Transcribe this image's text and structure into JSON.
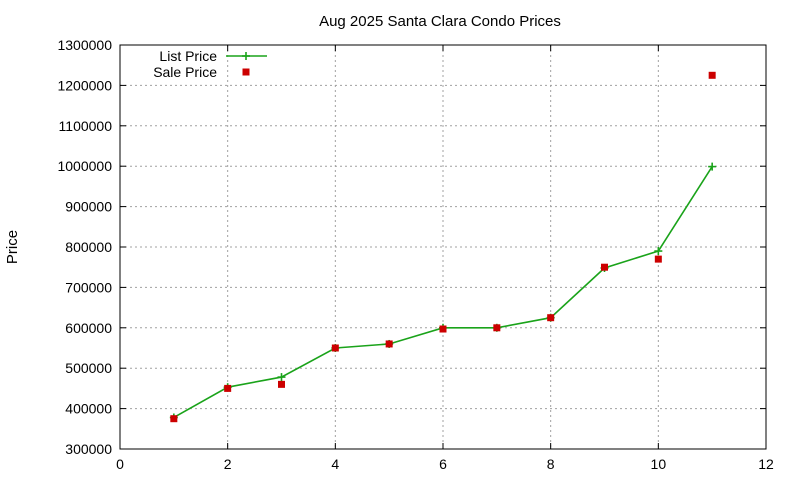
{
  "chart_data": {
    "type": "line",
    "title": "Aug 2025 Santa Clara Condo Prices",
    "xlabel": "",
    "ylabel": "Price",
    "xlim": [
      0,
      12
    ],
    "ylim": [
      300000,
      1300000
    ],
    "xticks": [
      0,
      2,
      4,
      6,
      8,
      10,
      12
    ],
    "yticks": [
      300000,
      400000,
      500000,
      600000,
      700000,
      800000,
      900000,
      1000000,
      1100000,
      1200000,
      1300000
    ],
    "grid": true,
    "legend_position": "top-left",
    "series": [
      {
        "name": "List Price",
        "style": "linespoints",
        "marker": "plus",
        "color": "#1aa31a",
        "x": [
          1,
          2,
          3,
          4,
          5,
          6,
          7,
          8,
          9,
          10,
          11
        ],
        "y": [
          378000,
          453000,
          478000,
          550000,
          560000,
          600000,
          600000,
          625000,
          748000,
          790000,
          999000
        ]
      },
      {
        "name": "Sale Price",
        "style": "points",
        "marker": "square",
        "color": "#cc0000",
        "x": [
          1,
          2,
          3,
          4,
          5,
          6,
          7,
          8,
          9,
          10,
          11
        ],
        "y": [
          375000,
          450000,
          460000,
          550000,
          560000,
          597000,
          600000,
          625000,
          750000,
          770000,
          1225000
        ]
      }
    ]
  }
}
